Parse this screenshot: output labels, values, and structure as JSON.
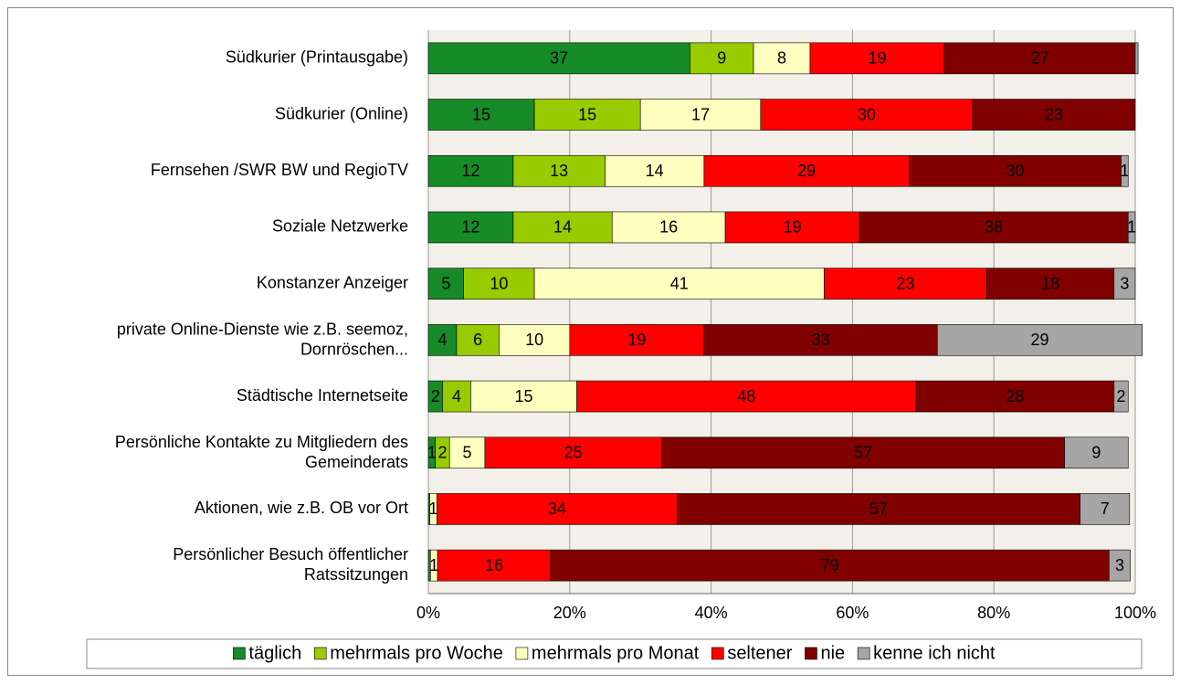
{
  "chart_data": {
    "type": "stacked-barh",
    "categories": [
      "Südkurier (Printausgabe)",
      "Südkurier (Online)",
      "Fernsehen /SWR BW und RegioTV",
      "Soziale Netzwerke",
      "Konstanzer Anzeiger",
      "private Online-Dienste wie z.B. seemoz,\nDornröschen...",
      "Städtische Internetseite",
      "Persönliche Kontakte zu Mitgliedern des\nGemeinderats",
      "Aktionen, wie z.B. OB vor Ort",
      "Persönlicher Besuch öffentlicher\nRatssitzungen"
    ],
    "series": [
      {
        "name": "täglich",
        "color": "#168b28",
        "values": [
          37,
          15,
          12,
          12,
          5,
          4,
          2,
          1,
          0.2,
          0.3
        ],
        "value_labels": [
          "37",
          "15",
          "12",
          "12",
          "5",
          "4",
          "2",
          "1",
          null,
          null
        ]
      },
      {
        "name": "mehrmals pro Woche",
        "color": "#99cc00",
        "values": [
          9,
          15,
          13,
          14,
          10,
          6,
          4,
          2,
          0,
          0
        ],
        "value_labels": [
          "9",
          "15",
          "13",
          "14",
          "10",
          "6",
          "4",
          "2",
          null,
          null
        ]
      },
      {
        "name": "mehrmals pro Monat",
        "color": "#ffffc0",
        "values": [
          8,
          17,
          14,
          16,
          41,
          10,
          15,
          5,
          1,
          1
        ],
        "value_labels": [
          "8",
          "17",
          "14",
          "16",
          "41",
          "10",
          "15",
          "5",
          "1",
          "1"
        ]
      },
      {
        "name": "seltener",
        "color": "#ff0000",
        "values": [
          19,
          30,
          29,
          19,
          23,
          19,
          48,
          25,
          34,
          16
        ],
        "value_labels": [
          "19",
          "30",
          "29",
          "19",
          "23",
          "19",
          "48",
          "25",
          "34",
          "16"
        ]
      },
      {
        "name": "nie",
        "color": "#800000",
        "values": [
          27,
          23,
          30,
          38,
          18,
          33,
          28,
          57,
          57,
          79
        ],
        "value_labels": [
          "27",
          "23",
          "30",
          "38",
          "18",
          "33",
          "28",
          "57",
          "57",
          "79"
        ]
      },
      {
        "name": "kenne ich nicht",
        "color": "#a6a6a6",
        "values": [
          0.4,
          0,
          1,
          1,
          3,
          29,
          2,
          9,
          7,
          3
        ],
        "value_labels": [
          null,
          null,
          "1",
          "1",
          "3",
          "29",
          "2",
          "9",
          "7",
          "3"
        ]
      }
    ],
    "xlim": [
      0,
      100
    ],
    "xticks": [
      {
        "value": 0,
        "label": "0%"
      },
      {
        "value": 20,
        "label": "20%"
      },
      {
        "value": 40,
        "label": "40%"
      },
      {
        "value": 60,
        "label": "60%"
      },
      {
        "value": 80,
        "label": "80%"
      },
      {
        "value": 100,
        "label": "100%"
      }
    ],
    "grid": true,
    "legend": "bottom"
  }
}
